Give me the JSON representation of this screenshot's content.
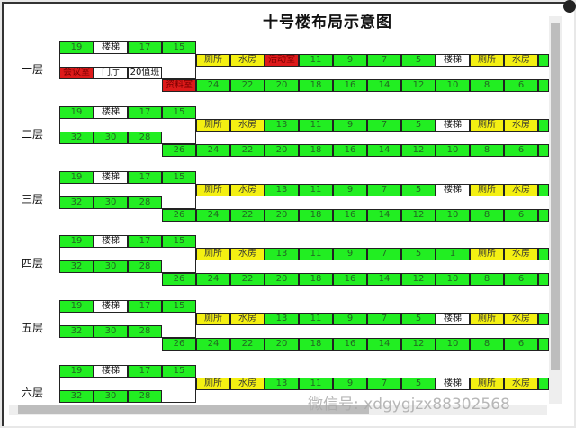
{
  "title": "十号楼布局示意图",
  "colors": {
    "green": "#22ee22",
    "yellow": "#f4f012",
    "red": "#dd1a1a",
    "white": "#ffffff"
  },
  "watermark": "微信号: xdgygjzx88302568",
  "floors": [
    {
      "label": "一层",
      "row_a": [
        {
          "t": "19",
          "c": "g"
        },
        {
          "t": "楼梯",
          "c": "w"
        },
        {
          "t": "17",
          "c": "g"
        },
        {
          "t": "15",
          "c": "g"
        }
      ],
      "row_b": [
        {
          "t": "厕所",
          "c": "y"
        },
        {
          "t": "水房",
          "c": "y"
        },
        {
          "t": "活动室",
          "c": "r"
        },
        {
          "t": "11",
          "c": "g"
        },
        {
          "t": "9",
          "c": "g"
        },
        {
          "t": "7",
          "c": "g"
        },
        {
          "t": "5",
          "c": "g"
        },
        {
          "t": "楼梯",
          "c": "w"
        },
        {
          "t": "厕所",
          "c": "y"
        },
        {
          "t": "水房",
          "c": "y"
        },
        {
          "t": "",
          "c": "g"
        }
      ],
      "row_c": [
        {
          "t": "会议室",
          "c": "r"
        },
        {
          "t": "门厅",
          "c": "w"
        },
        {
          "t": "20值班",
          "c": "w"
        }
      ],
      "row_d_start": 3,
      "row_d": [
        {
          "t": "资料室",
          "c": "r"
        },
        {
          "t": "24",
          "c": "g"
        },
        {
          "t": "22",
          "c": "g"
        },
        {
          "t": "20",
          "c": "g"
        },
        {
          "t": "18",
          "c": "g"
        },
        {
          "t": "16",
          "c": "g"
        },
        {
          "t": "14",
          "c": "g"
        },
        {
          "t": "12",
          "c": "g"
        },
        {
          "t": "10",
          "c": "g"
        },
        {
          "t": "8",
          "c": "g"
        },
        {
          "t": "6",
          "c": "g"
        },
        {
          "t": "",
          "c": "g"
        }
      ]
    },
    {
      "label": "二层",
      "row_a": [
        {
          "t": "19",
          "c": "g"
        },
        {
          "t": "楼梯",
          "c": "w"
        },
        {
          "t": "17",
          "c": "g"
        },
        {
          "t": "15",
          "c": "g"
        }
      ],
      "row_b": [
        {
          "t": "厕所",
          "c": "y"
        },
        {
          "t": "水房",
          "c": "y"
        },
        {
          "t": "13",
          "c": "g"
        },
        {
          "t": "11",
          "c": "g"
        },
        {
          "t": "9",
          "c": "g"
        },
        {
          "t": "7",
          "c": "g"
        },
        {
          "t": "5",
          "c": "g"
        },
        {
          "t": "楼梯",
          "c": "w"
        },
        {
          "t": "厕所",
          "c": "y"
        },
        {
          "t": "水房",
          "c": "y"
        },
        {
          "t": "",
          "c": "g"
        }
      ],
      "row_c": [
        {
          "t": "32",
          "c": "g"
        },
        {
          "t": "30",
          "c": "g"
        },
        {
          "t": "28",
          "c": "g"
        }
      ],
      "row_d": [
        {
          "t": "26",
          "c": "g"
        },
        {
          "t": "24",
          "c": "g"
        },
        {
          "t": "22",
          "c": "g"
        },
        {
          "t": "20",
          "c": "g"
        },
        {
          "t": "18",
          "c": "g"
        },
        {
          "t": "16",
          "c": "g"
        },
        {
          "t": "14",
          "c": "g"
        },
        {
          "t": "12",
          "c": "g"
        },
        {
          "t": "10",
          "c": "g"
        },
        {
          "t": "8",
          "c": "g"
        },
        {
          "t": "6",
          "c": "g"
        },
        {
          "t": "",
          "c": "g"
        }
      ]
    },
    {
      "label": "三层",
      "row_a": [
        {
          "t": "19",
          "c": "g"
        },
        {
          "t": "楼梯",
          "c": "w"
        },
        {
          "t": "17",
          "c": "g"
        },
        {
          "t": "15",
          "c": "g"
        }
      ],
      "row_b": [
        {
          "t": "厕所",
          "c": "y"
        },
        {
          "t": "水房",
          "c": "y"
        },
        {
          "t": "13",
          "c": "g"
        },
        {
          "t": "11",
          "c": "g"
        },
        {
          "t": "9",
          "c": "g"
        },
        {
          "t": "7",
          "c": "g"
        },
        {
          "t": "5",
          "c": "g"
        },
        {
          "t": "楼梯",
          "c": "w"
        },
        {
          "t": "厕所",
          "c": "y"
        },
        {
          "t": "水房",
          "c": "y"
        },
        {
          "t": "",
          "c": "g"
        }
      ],
      "row_c": [
        {
          "t": "32",
          "c": "g"
        },
        {
          "t": "30",
          "c": "g"
        },
        {
          "t": "28",
          "c": "g"
        }
      ],
      "row_d": [
        {
          "t": "26",
          "c": "g"
        },
        {
          "t": "24",
          "c": "g"
        },
        {
          "t": "22",
          "c": "g"
        },
        {
          "t": "20",
          "c": "g"
        },
        {
          "t": "18",
          "c": "g"
        },
        {
          "t": "16",
          "c": "g"
        },
        {
          "t": "14",
          "c": "g"
        },
        {
          "t": "12",
          "c": "g"
        },
        {
          "t": "10",
          "c": "g"
        },
        {
          "t": "8",
          "c": "g"
        },
        {
          "t": "6",
          "c": "g"
        },
        {
          "t": "",
          "c": "g"
        }
      ]
    },
    {
      "label": "四层",
      "row_a": [
        {
          "t": "19",
          "c": "g"
        },
        {
          "t": "楼梯",
          "c": "w"
        },
        {
          "t": "17",
          "c": "g"
        },
        {
          "t": "15",
          "c": "g"
        }
      ],
      "row_b": [
        {
          "t": "厕所",
          "c": "y"
        },
        {
          "t": "水房",
          "c": "y"
        },
        {
          "t": "13",
          "c": "g"
        },
        {
          "t": "11",
          "c": "g"
        },
        {
          "t": "9",
          "c": "g"
        },
        {
          "t": "7",
          "c": "g"
        },
        {
          "t": "5",
          "c": "g"
        },
        {
          "t": "1",
          "c": "g"
        },
        {
          "t": "厕所",
          "c": "y"
        },
        {
          "t": "水房",
          "c": "y"
        },
        {
          "t": "",
          "c": "g"
        }
      ],
      "row_c": [
        {
          "t": "32",
          "c": "g"
        },
        {
          "t": "30",
          "c": "g"
        },
        {
          "t": "28",
          "c": "g"
        }
      ],
      "row_d": [
        {
          "t": "26",
          "c": "g"
        },
        {
          "t": "24",
          "c": "g"
        },
        {
          "t": "22",
          "c": "g"
        },
        {
          "t": "20",
          "c": "g"
        },
        {
          "t": "18",
          "c": "g"
        },
        {
          "t": "16",
          "c": "g"
        },
        {
          "t": "14",
          "c": "g"
        },
        {
          "t": "12",
          "c": "g"
        },
        {
          "t": "10",
          "c": "g"
        },
        {
          "t": "8",
          "c": "g"
        },
        {
          "t": "6",
          "c": "g"
        },
        {
          "t": "",
          "c": "g"
        }
      ]
    },
    {
      "label": "五层",
      "row_a": [
        {
          "t": "19",
          "c": "g"
        },
        {
          "t": "楼梯",
          "c": "w"
        },
        {
          "t": "17",
          "c": "g"
        },
        {
          "t": "15",
          "c": "g"
        }
      ],
      "row_b": [
        {
          "t": "厕所",
          "c": "y"
        },
        {
          "t": "水房",
          "c": "y"
        },
        {
          "t": "13",
          "c": "g"
        },
        {
          "t": "11",
          "c": "g"
        },
        {
          "t": "9",
          "c": "g"
        },
        {
          "t": "7",
          "c": "g"
        },
        {
          "t": "5",
          "c": "g"
        },
        {
          "t": "楼梯",
          "c": "w"
        },
        {
          "t": "厕所",
          "c": "y"
        },
        {
          "t": "水房",
          "c": "y"
        },
        {
          "t": "",
          "c": "g"
        }
      ],
      "row_c": [
        {
          "t": "32",
          "c": "g"
        },
        {
          "t": "30",
          "c": "g"
        },
        {
          "t": "28",
          "c": "g"
        }
      ],
      "row_d": [
        {
          "t": "26",
          "c": "g"
        },
        {
          "t": "24",
          "c": "g"
        },
        {
          "t": "22",
          "c": "g"
        },
        {
          "t": "20",
          "c": "g"
        },
        {
          "t": "18",
          "c": "g"
        },
        {
          "t": "16",
          "c": "g"
        },
        {
          "t": "14",
          "c": "g"
        },
        {
          "t": "12",
          "c": "g"
        },
        {
          "t": "10",
          "c": "g"
        },
        {
          "t": "8",
          "c": "g"
        },
        {
          "t": "6",
          "c": "g"
        },
        {
          "t": "",
          "c": "g"
        }
      ]
    },
    {
      "label": "六层",
      "row_a": [
        {
          "t": "19",
          "c": "g"
        },
        {
          "t": "楼梯",
          "c": "w"
        },
        {
          "t": "17",
          "c": "g"
        },
        {
          "t": "15",
          "c": "g"
        }
      ],
      "row_b": [
        {
          "t": "厕所",
          "c": "y"
        },
        {
          "t": "水房",
          "c": "y"
        },
        {
          "t": "13",
          "c": "g"
        },
        {
          "t": "11",
          "c": "g"
        },
        {
          "t": "9",
          "c": "g"
        },
        {
          "t": "7",
          "c": "g"
        },
        {
          "t": "5",
          "c": "g"
        },
        {
          "t": "楼梯",
          "c": "w"
        },
        {
          "t": "厕所",
          "c": "y"
        },
        {
          "t": "水房",
          "c": "y"
        },
        {
          "t": "",
          "c": "g"
        }
      ],
      "row_c": [
        {
          "t": "32",
          "c": "g"
        },
        {
          "t": "30",
          "c": "g"
        },
        {
          "t": "28",
          "c": "g"
        }
      ],
      "row_d": []
    }
  ]
}
